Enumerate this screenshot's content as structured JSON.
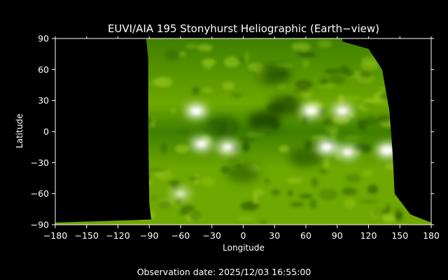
{
  "chart_data": {
    "type": "heatmap",
    "title": "EUVI/AIA 195 Stonyhurst Heliographic (Earth−view)",
    "xlabel": "Longitude",
    "ylabel": "Latitude",
    "xlim": [
      -180,
      180
    ],
    "ylim": [
      -90,
      90
    ],
    "xticks": [
      -180,
      -150,
      -120,
      -90,
      -60,
      -30,
      0,
      30,
      60,
      90,
      120,
      150,
      180
    ],
    "yticks": [
      90,
      60,
      30,
      0,
      -30,
      -60,
      -90
    ],
    "xtick_labels": [
      "−180",
      "−150",
      "−120",
      "−90",
      "−60",
      "−30",
      "0",
      "30",
      "60",
      "90",
      "120",
      "150",
      "180"
    ],
    "ytick_labels": [
      "90",
      "60",
      "30",
      "0",
      "−30",
      "−60",
      "−90"
    ],
    "grid": false,
    "colormap": [
      "#000000",
      "#1f4a00",
      "#3f7f00",
      "#6fa800",
      "#9fcf20",
      "#ffffff"
    ],
    "coverage": {
      "west_edge_lon": [
        [
          90,
          -93
        ],
        [
          70,
          -91
        ],
        [
          0,
          -91
        ],
        [
          -70,
          -90
        ],
        [
          -85,
          -88
        ],
        [
          -88,
          -180
        ],
        [
          -90,
          -180
        ]
      ],
      "east_edge_lon": [
        [
          90,
          95
        ],
        [
          87,
          95
        ],
        [
          80,
          120
        ],
        [
          60,
          133
        ],
        [
          20,
          140
        ],
        [
          -20,
          143
        ],
        [
          -60,
          145
        ],
        [
          -80,
          160
        ],
        [
          -88,
          180
        ],
        [
          -90,
          180
        ]
      ]
    },
    "bright_regions": [
      {
        "lon": -45,
        "lat": 20,
        "intensity": 0.95
      },
      {
        "lon": -40,
        "lat": -12,
        "intensity": 0.85
      },
      {
        "lon": -15,
        "lat": -15,
        "intensity": 0.8
      },
      {
        "lon": 65,
        "lat": 20,
        "intensity": 0.9
      },
      {
        "lon": 95,
        "lat": 20,
        "intensity": 0.85
      },
      {
        "lon": 80,
        "lat": -15,
        "intensity": 0.95
      },
      {
        "lon": 100,
        "lat": -20,
        "intensity": 0.8
      },
      {
        "lon": 138,
        "lat": -18,
        "intensity": 1.0
      },
      {
        "lon": -60,
        "lat": -60,
        "intensity": 0.5
      }
    ],
    "dark_regions": [
      {
        "lon": 20,
        "lat": 10,
        "depth": 0.95
      },
      {
        "lon": 40,
        "lat": 25,
        "depth": 0.8
      },
      {
        "lon": -20,
        "lat": 5,
        "depth": 0.7
      },
      {
        "lon": 30,
        "lat": 55,
        "depth": 0.7
      },
      {
        "lon": 60,
        "lat": -25,
        "depth": 0.6
      },
      {
        "lon": 0,
        "lat": -40,
        "depth": 0.55
      }
    ]
  },
  "footer": {
    "observation_label": "Observation date: 2025/12/03 16:55:00"
  }
}
